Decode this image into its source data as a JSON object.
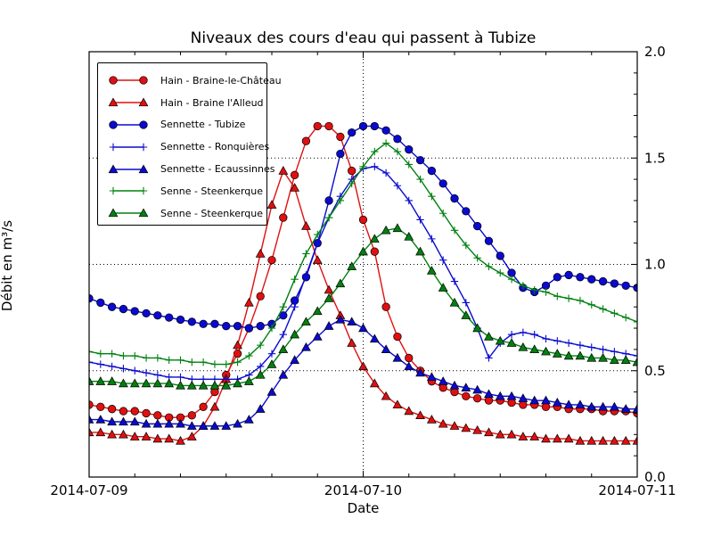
{
  "chart_data": {
    "type": "line",
    "title": "Niveaux des cours d'eau qui passent à Tubize",
    "xlabel": "Date",
    "ylabel": "Débit en m³/s",
    "legend_position": "upper left",
    "grid": "dotted, horizontal at each 0.5 and vertical at day boundaries",
    "x_unit": "hours since 2014-07-09 00:00",
    "x_range_hours": [
      0,
      48
    ],
    "x_ticks": [
      {
        "t": 0,
        "label": "2014-07-09"
      },
      {
        "t": 24,
        "label": "2014-07-10"
      },
      {
        "t": 48,
        "label": "2014-07-11"
      }
    ],
    "x_minor_every_hours": 4,
    "ylim": [
      0.0,
      2.0
    ],
    "y_ticks": [
      "0.0",
      "0.5",
      "1.0",
      "1.5",
      "2.0"
    ],
    "y_minor_step": 0.1,
    "colors": {
      "red": "#e01010",
      "blue": "#0a0ad0",
      "green": "#008010"
    },
    "series": [
      {
        "name": "Hain - Braine-le-Château",
        "color": "#e01010",
        "marker": "circle",
        "values": [
          0.34,
          0.33,
          0.32,
          0.31,
          0.31,
          0.3,
          0.29,
          0.28,
          0.28,
          0.29,
          0.33,
          0.4,
          0.48,
          0.58,
          0.7,
          0.85,
          1.02,
          1.22,
          1.42,
          1.58,
          1.65,
          1.65,
          1.6,
          1.44,
          1.21,
          1.06,
          0.8,
          0.66,
          0.56,
          0.5,
          0.45,
          0.42,
          0.4,
          0.38,
          0.37,
          0.36,
          0.36,
          0.35,
          0.34,
          0.34,
          0.33,
          0.33,
          0.32,
          0.32,
          0.32,
          0.31,
          0.31,
          0.31,
          0.3
        ]
      },
      {
        "name": "Hain - Braine l'Alleud",
        "color": "#e01010",
        "marker": "triangle",
        "values": [
          0.21,
          0.21,
          0.2,
          0.2,
          0.19,
          0.19,
          0.18,
          0.18,
          0.17,
          0.19,
          0.24,
          0.33,
          0.46,
          0.62,
          0.82,
          1.05,
          1.28,
          1.44,
          1.36,
          1.18,
          1.02,
          0.88,
          0.76,
          0.63,
          0.52,
          0.44,
          0.38,
          0.34,
          0.31,
          0.29,
          0.27,
          0.25,
          0.24,
          0.23,
          0.22,
          0.21,
          0.2,
          0.2,
          0.19,
          0.19,
          0.18,
          0.18,
          0.18,
          0.17,
          0.17,
          0.17,
          0.17,
          0.17,
          0.17
        ]
      },
      {
        "name": "Sennette - Tubize",
        "color": "#0a0ad0",
        "marker": "circle",
        "values": [
          0.84,
          0.82,
          0.8,
          0.79,
          0.78,
          0.77,
          0.76,
          0.75,
          0.74,
          0.73,
          0.72,
          0.72,
          0.71,
          0.71,
          0.7,
          0.71,
          0.72,
          0.76,
          0.83,
          0.94,
          1.1,
          1.3,
          1.52,
          1.62,
          1.65,
          1.65,
          1.63,
          1.59,
          1.54,
          1.49,
          1.44,
          1.38,
          1.31,
          1.25,
          1.18,
          1.11,
          1.04,
          0.96,
          0.89,
          0.87,
          0.9,
          0.94,
          0.95,
          0.94,
          0.93,
          0.92,
          0.91,
          0.9,
          0.89
        ]
      },
      {
        "name": "Sennette - Ronquières",
        "color": "#0a0ad0",
        "marker": "plus",
        "values": [
          0.54,
          0.53,
          0.52,
          0.51,
          0.5,
          0.49,
          0.48,
          0.47,
          0.47,
          0.46,
          0.46,
          0.46,
          0.46,
          0.46,
          0.48,
          0.52,
          0.58,
          0.67,
          0.8,
          0.95,
          1.1,
          1.22,
          1.32,
          1.4,
          1.45,
          1.46,
          1.43,
          1.37,
          1.3,
          1.21,
          1.12,
          1.02,
          0.92,
          0.82,
          0.7,
          0.56,
          0.63,
          0.67,
          0.68,
          0.67,
          0.65,
          0.64,
          0.63,
          0.62,
          0.61,
          0.6,
          0.59,
          0.58,
          0.57
        ]
      },
      {
        "name": "Sennette - Ecaussinnes",
        "color": "#0a0ad0",
        "marker": "triangle",
        "values": [
          0.27,
          0.27,
          0.26,
          0.26,
          0.26,
          0.25,
          0.25,
          0.25,
          0.25,
          0.24,
          0.24,
          0.24,
          0.24,
          0.25,
          0.27,
          0.32,
          0.4,
          0.48,
          0.55,
          0.61,
          0.66,
          0.71,
          0.74,
          0.73,
          0.7,
          0.65,
          0.6,
          0.56,
          0.52,
          0.49,
          0.47,
          0.45,
          0.43,
          0.42,
          0.41,
          0.39,
          0.38,
          0.38,
          0.37,
          0.36,
          0.36,
          0.35,
          0.34,
          0.34,
          0.33,
          0.33,
          0.33,
          0.32,
          0.32
        ]
      },
      {
        "name": "Senne - Steenkerque",
        "color": "#008010",
        "marker": "plus",
        "values": [
          0.59,
          0.58,
          0.58,
          0.57,
          0.57,
          0.56,
          0.56,
          0.55,
          0.55,
          0.54,
          0.54,
          0.53,
          0.53,
          0.54,
          0.57,
          0.62,
          0.7,
          0.8,
          0.93,
          1.05,
          1.14,
          1.22,
          1.3,
          1.38,
          1.46,
          1.53,
          1.57,
          1.53,
          1.47,
          1.4,
          1.32,
          1.24,
          1.16,
          1.09,
          1.03,
          0.99,
          0.96,
          0.93,
          0.9,
          0.88,
          0.87,
          0.85,
          0.84,
          0.83,
          0.81,
          0.79,
          0.77,
          0.75,
          0.73
        ]
      },
      {
        "name": "Senne - Steenkerque",
        "color": "#008010",
        "marker": "triangle",
        "values": [
          0.45,
          0.45,
          0.45,
          0.44,
          0.44,
          0.44,
          0.44,
          0.44,
          0.43,
          0.43,
          0.43,
          0.43,
          0.43,
          0.44,
          0.45,
          0.48,
          0.53,
          0.6,
          0.67,
          0.73,
          0.78,
          0.84,
          0.91,
          0.99,
          1.06,
          1.12,
          1.16,
          1.17,
          1.13,
          1.06,
          0.97,
          0.89,
          0.82,
          0.76,
          0.7,
          0.66,
          0.64,
          0.63,
          0.61,
          0.6,
          0.59,
          0.58,
          0.57,
          0.57,
          0.56,
          0.56,
          0.55,
          0.55,
          0.54
        ]
      }
    ]
  }
}
